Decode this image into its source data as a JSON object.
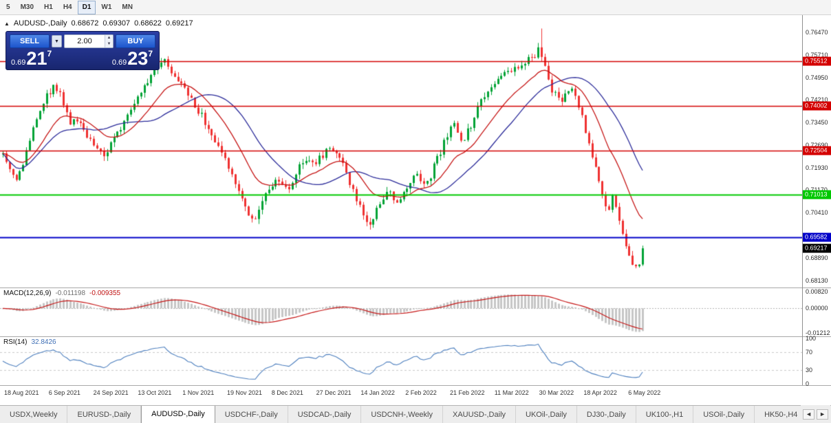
{
  "toolbar": {
    "timeframes": [
      {
        "label": "5",
        "active": false
      },
      {
        "label": "M30",
        "active": false
      },
      {
        "label": "H1",
        "active": false
      },
      {
        "label": "H4",
        "active": false
      },
      {
        "label": "D1",
        "active": true
      },
      {
        "label": "W1",
        "active": false
      },
      {
        "label": "MN",
        "active": false
      }
    ]
  },
  "chart_header": {
    "symbol": "AUDUSD-,Daily",
    "open": "0.68672",
    "high": "0.69307",
    "low": "0.68622",
    "close": "0.69217"
  },
  "trade_panel": {
    "sell_label": "SELL",
    "buy_label": "BUY",
    "volume": "2.00",
    "sell_price_small": "0.69",
    "sell_price_big": "21",
    "sell_price_sup": "7",
    "buy_price_small": "0.69",
    "buy_price_big": "23",
    "buy_price_sup": "7"
  },
  "chart_data": {
    "type": "candlestick",
    "symbol": "AUDUSD",
    "period": "Daily",
    "candle_count": 191,
    "price_axis": {
      "min": 0.679,
      "max": 0.7705,
      "ticks": [
        "0.76470",
        "0.75710",
        "0.74950",
        "0.74210",
        "0.73450",
        "0.72690",
        "0.71930",
        "0.71170",
        "0.70410",
        "0.69650",
        "0.68890",
        "0.68130"
      ]
    },
    "hlines": [
      {
        "value": 0.75512,
        "label": "0.75512",
        "color": "#d40000"
      },
      {
        "value": 0.74002,
        "label": "0.74002",
        "color": "#d40000"
      },
      {
        "value": 0.72504,
        "label": "0.72504",
        "color": "#d40000"
      },
      {
        "value": 0.71013,
        "label": "0.71013",
        "color": "#00c800"
      },
      {
        "value": 0.69582,
        "label": "0.69582",
        "color": "#0000c8"
      }
    ],
    "current_price": {
      "value": 0.69217,
      "label": "0.69217"
    },
    "last_candle": {
      "o": 0.68672,
      "h": 0.69307,
      "l": 0.68622,
      "c": 0.69217
    },
    "spike": {
      "f": 0.84,
      "high": 0.766
    },
    "price_path": [
      [
        0.0,
        0.7255
      ],
      [
        0.01,
        0.7195
      ],
      [
        0.022,
        0.7135
      ],
      [
        0.035,
        0.724
      ],
      [
        0.05,
        0.733
      ],
      [
        0.065,
        0.742
      ],
      [
        0.078,
        0.7465
      ],
      [
        0.092,
        0.743
      ],
      [
        0.105,
        0.735
      ],
      [
        0.122,
        0.733
      ],
      [
        0.14,
        0.7285
      ],
      [
        0.158,
        0.7228
      ],
      [
        0.175,
        0.729
      ],
      [
        0.195,
        0.738
      ],
      [
        0.215,
        0.745
      ],
      [
        0.235,
        0.752
      ],
      [
        0.252,
        0.7548
      ],
      [
        0.268,
        0.751
      ],
      [
        0.282,
        0.746
      ],
      [
        0.298,
        0.7405
      ],
      [
        0.315,
        0.735
      ],
      [
        0.33,
        0.7282
      ],
      [
        0.345,
        0.723
      ],
      [
        0.36,
        0.716
      ],
      [
        0.378,
        0.707
      ],
      [
        0.393,
        0.7005
      ],
      [
        0.404,
        0.7075
      ],
      [
        0.416,
        0.713
      ],
      [
        0.43,
        0.7148
      ],
      [
        0.444,
        0.711
      ],
      [
        0.458,
        0.7175
      ],
      [
        0.472,
        0.7222
      ],
      [
        0.487,
        0.7205
      ],
      [
        0.502,
        0.7242
      ],
      [
        0.517,
        0.7258
      ],
      [
        0.532,
        0.7195
      ],
      [
        0.548,
        0.7118
      ],
      [
        0.562,
        0.7032
      ],
      [
        0.573,
        0.6996
      ],
      [
        0.585,
        0.7062
      ],
      [
        0.6,
        0.7118
      ],
      [
        0.615,
        0.7078
      ],
      [
        0.63,
        0.7122
      ],
      [
        0.645,
        0.7175
      ],
      [
        0.66,
        0.7125
      ],
      [
        0.672,
        0.7185
      ],
      [
        0.685,
        0.7252
      ],
      [
        0.697,
        0.7312
      ],
      [
        0.708,
        0.7335
      ],
      [
        0.717,
        0.7268
      ],
      [
        0.728,
        0.7322
      ],
      [
        0.742,
        0.7388
      ],
      [
        0.756,
        0.7442
      ],
      [
        0.77,
        0.7488
      ],
      [
        0.785,
        0.7505
      ],
      [
        0.8,
        0.752
      ],
      [
        0.815,
        0.7545
      ],
      [
        0.83,
        0.7572
      ],
      [
        0.84,
        0.759
      ],
      [
        0.85,
        0.75
      ],
      [
        0.86,
        0.7448
      ],
      [
        0.87,
        0.7415
      ],
      [
        0.88,
        0.7448
      ],
      [
        0.89,
        0.7462
      ],
      [
        0.9,
        0.7398
      ],
      [
        0.91,
        0.7325
      ],
      [
        0.92,
        0.7235
      ],
      [
        0.93,
        0.7152
      ],
      [
        0.94,
        0.7085
      ],
      [
        0.947,
        0.7042
      ],
      [
        0.954,
        0.7108
      ],
      [
        0.963,
        0.7005
      ],
      [
        0.973,
        0.6942
      ],
      [
        0.983,
        0.688
      ],
      [
        0.992,
        0.6855
      ],
      [
        1.0,
        0.6922
      ]
    ],
    "date_labels": [
      "18 Aug 2021",
      "6 Sep 2021",
      "24 Sep 2021",
      "13 Oct 2021",
      "1 Nov 2021",
      "19 Nov 2021",
      "8 Dec 2021",
      "27 Dec 2021",
      "14 Jan 2022",
      "2 Feb 2022",
      "21 Feb 2022",
      "11 Mar 2022",
      "30 Mar 2022",
      "18 Apr 2022",
      "6 May 2022"
    ],
    "ma_fast_period": 16,
    "ma_slow_period": 28,
    "macd": {
      "name": "MACD(12,26,9)",
      "value_main": "-0.011198",
      "value_signal": "-0.009355",
      "fast": 12,
      "slow": 26,
      "signal": 9,
      "last_value": -0.011198,
      "axis_max": 0.01,
      "axis_min": -0.0138,
      "ticks": [
        {
          "v": 0.0082,
          "label": "0.00820"
        },
        {
          "v": 0.0,
          "label": "0.00000"
        },
        {
          "v": -0.01212,
          "label": "-0.01212"
        }
      ]
    },
    "rsi": {
      "name": "RSI(14)",
      "value": "32.8426",
      "period": 14,
      "levels": [
        70,
        30
      ],
      "ticks": [
        {
          "v": 100,
          "label": "100"
        },
        {
          "v": 70,
          "label": "70"
        },
        {
          "v": 30,
          "label": "30"
        },
        {
          "v": 0,
          "label": "0"
        }
      ]
    }
  },
  "colors": {
    "candle_up": "#00a234",
    "candle_down": "#ef3030",
    "ma_fast": "#c51414",
    "ma_slow": "#2a2a99",
    "macd_hist": "#c6c6c6",
    "macd_signal": "#c51414",
    "rsi_line": "#4a7dbd",
    "current_price_bg": "#000000"
  },
  "tabs": {
    "items": [
      {
        "label": "USDX,Weekly",
        "active": false
      },
      {
        "label": "EURUSD-,Daily",
        "active": false
      },
      {
        "label": "AUDUSD-,Daily",
        "active": true
      },
      {
        "label": "USDCHF-,Daily",
        "active": false
      },
      {
        "label": "USDCAD-,Daily",
        "active": false
      },
      {
        "label": "USDCNH-,Weekly",
        "active": false
      },
      {
        "label": "XAUUSD-,Daily",
        "active": false
      },
      {
        "label": "UKOil-,Daily",
        "active": false
      },
      {
        "label": "DJ30-,Daily",
        "active": false
      },
      {
        "label": "UK100-,H1",
        "active": false
      },
      {
        "label": "USOil-,Daily",
        "active": false
      },
      {
        "label": "HK50-,H4",
        "active": false
      }
    ],
    "nav_left": "◄",
    "nav_right": "►"
  }
}
